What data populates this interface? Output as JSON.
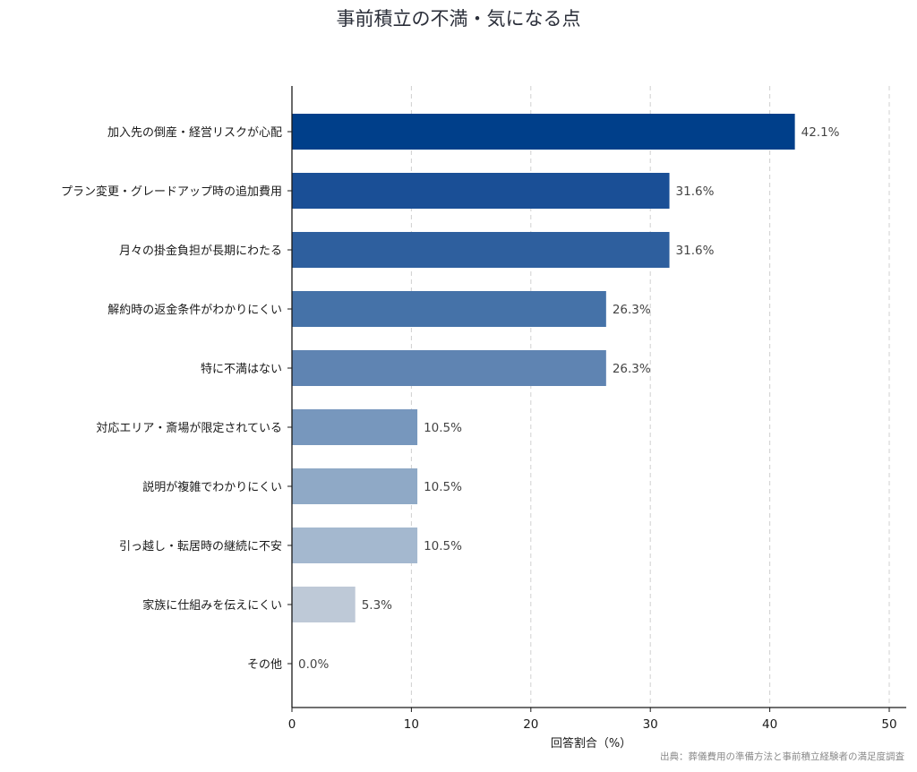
{
  "chart_data": {
    "type": "bar",
    "orientation": "horizontal",
    "title": "事前積立の不満・気になる点",
    "xlabel": "回答割合（%）",
    "ylabel": "",
    "xlim": [
      0,
      50
    ],
    "xticks": [
      0,
      10,
      20,
      30,
      40,
      50
    ],
    "grid": "vertical-dashed",
    "categories": [
      "加入先の倒産・経営リスクが心配",
      "プラン変更・グレードアップ時の追加費用",
      "月々の掛金負担が長期にわたる",
      "解約時の返金条件がわかりにくい",
      "特に不満はない",
      "対応エリア・斎場が限定されている",
      "説明が複雑でわかりにくい",
      "引っ越し・転居時の継続に不安",
      "家族に仕組みを伝えにくい",
      "その他"
    ],
    "values": [
      42.1,
      31.6,
      31.6,
      26.3,
      26.3,
      10.5,
      10.5,
      10.5,
      5.3,
      0.0
    ],
    "value_labels": [
      "42.1%",
      "31.6%",
      "31.6%",
      "26.3%",
      "26.3%",
      "10.5%",
      "10.5%",
      "10.5%",
      "5.3%",
      "0.0%"
    ],
    "colors": [
      "#003f8a",
      "#1a4f96",
      "#2e5f9e",
      "#4572a8",
      "#5f84b2",
      "#7797bd",
      "#8fa9c6",
      "#a4b8cf",
      "#bec9d7",
      "#d5dbe4"
    ]
  },
  "source_note": "出典：葬儀費用の準備方法と事前積立経験者の満足度調査"
}
